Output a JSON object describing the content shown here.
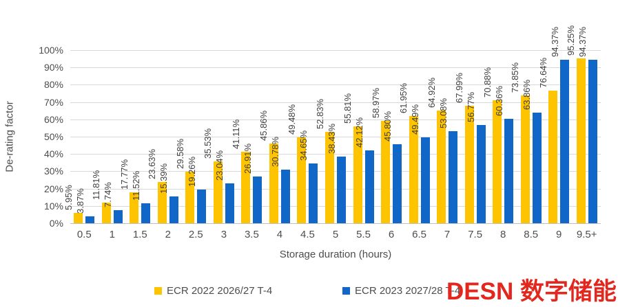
{
  "watermark": {
    "text": "DESN 数字储能网",
    "color": "#e2271e"
  },
  "chart_data": {
    "type": "bar",
    "title": "",
    "xlabel": "Storage duration (hours)",
    "ylabel": "De-rating factor",
    "ylim": [
      0,
      100
    ],
    "grid": true,
    "legend_position": "bottom",
    "ytick_labels": [
      "0%",
      "10%",
      "20%",
      "30%",
      "40%",
      "50%",
      "60%",
      "70%",
      "80%",
      "90%",
      "100%"
    ],
    "categories": [
      "0.5",
      "1",
      "1.5",
      "2",
      "2.5",
      "3",
      "3.5",
      "4",
      "4.5",
      "5",
      "5.5",
      "6",
      "6.5",
      "7",
      "7.5",
      "8",
      "8.5",
      "9",
      "9.5+"
    ],
    "series": [
      {
        "name": "ECR 2022 2026/27 T-4",
        "color": "#ffc400",
        "values": [
          5.95,
          11.81,
          17.77,
          23.63,
          29.58,
          35.53,
          41.11,
          45.86,
          49.48,
          52.83,
          55.81,
          58.97,
          61.95,
          64.92,
          67.99,
          70.88,
          73.85,
          76.64,
          95.25
        ]
      },
      {
        "name": "ECR 2023 2027/28 T-4",
        "color": "#1167c7",
        "values": [
          3.87,
          7.74,
          11.52,
          15.39,
          19.26,
          23.04,
          26.91,
          30.78,
          34.65,
          38.43,
          42.12,
          45.8,
          49.49,
          53.08,
          56.77,
          60.36,
          63.86,
          94.37,
          94.37
        ]
      }
    ],
    "value_label_suffix": "%"
  }
}
